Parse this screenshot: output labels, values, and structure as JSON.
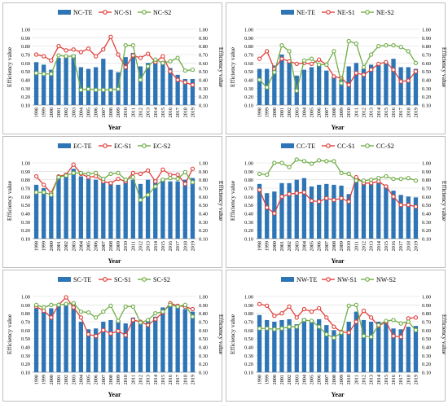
{
  "chart_data": [
    {
      "type": "bar",
      "legend": {
        "te": "NC-TE",
        "s1": "NC-S1",
        "s2": "NC-S2"
      },
      "xlabel": "Year",
      "ylabel_left": "Efficiency value",
      "ylabel_right": "Efficiency value",
      "ylim": [
        0.1,
        1.0
      ],
      "categories": [
        "1998",
        "1999",
        "2000",
        "2001",
        "2002",
        "2003",
        "2004",
        "2005",
        "2006",
        "2007",
        "2008",
        "2009",
        "2010",
        "2011",
        "2012",
        "2013",
        "2014",
        "2015",
        "2016",
        "2017",
        "2018",
        "2019"
      ],
      "series": [
        {
          "name": "NC-TE",
          "kind": "bar",
          "values": [
            0.61,
            0.58,
            0.52,
            0.66,
            0.68,
            0.7,
            0.55,
            0.53,
            0.55,
            0.65,
            0.52,
            0.49,
            0.67,
            0.72,
            0.56,
            0.6,
            0.64,
            0.62,
            0.54,
            0.46,
            0.41,
            0.41
          ]
        },
        {
          "name": "NC-S1",
          "kind": "line",
          "values": [
            0.7,
            0.68,
            0.63,
            0.8,
            0.75,
            0.76,
            0.73,
            0.77,
            0.68,
            0.76,
            0.91,
            0.7,
            0.55,
            0.69,
            0.66,
            0.71,
            0.61,
            0.68,
            0.5,
            0.4,
            0.37,
            0.34
          ]
        },
        {
          "name": "NC-S2",
          "kind": "line",
          "values": [
            0.48,
            0.47,
            0.47,
            0.69,
            0.68,
            0.68,
            0.28,
            0.29,
            0.28,
            0.28,
            0.28,
            0.29,
            0.81,
            0.81,
            0.4,
            0.56,
            0.64,
            0.6,
            0.62,
            0.66,
            0.51,
            0.52
          ]
        }
      ]
    },
    {
      "type": "bar",
      "legend": {
        "te": "NE-TE",
        "s1": "NE-S1",
        "s2": "NE-S2"
      },
      "xlabel": "Year",
      "ylabel_left": "Efficiency value",
      "ylabel_right": "Efficiency value",
      "ylim": [
        0.1,
        1.0
      ],
      "categories": [
        "1998",
        "1999",
        "2000",
        "2001",
        "2002",
        "2003",
        "2004",
        "2005",
        "2006",
        "2007",
        "2008",
        "2009",
        "2010",
        "2011",
        "2012",
        "2013",
        "2014",
        "2015",
        "2016",
        "2017",
        "2018",
        "2019"
      ],
      "series": [
        {
          "name": "NE-TE",
          "kind": "bar",
          "values": [
            0.53,
            0.53,
            0.57,
            0.7,
            0.62,
            0.45,
            0.52,
            0.55,
            0.58,
            0.51,
            0.43,
            0.4,
            0.56,
            0.6,
            0.53,
            0.58,
            0.57,
            0.62,
            0.65,
            0.55,
            0.55,
            0.53
          ]
        },
        {
          "name": "NE-S1",
          "kind": "line",
          "values": [
            0.65,
            0.74,
            0.53,
            0.65,
            0.62,
            0.59,
            0.6,
            0.59,
            0.64,
            0.58,
            0.44,
            0.42,
            0.34,
            0.48,
            0.46,
            0.52,
            0.59,
            0.61,
            0.52,
            0.38,
            0.39,
            0.5
          ]
        },
        {
          "name": "NE-S2",
          "kind": "line",
          "values": [
            0.4,
            0.31,
            0.49,
            0.81,
            0.74,
            0.27,
            0.63,
            0.65,
            0.58,
            0.58,
            0.74,
            0.36,
            0.86,
            0.83,
            0.55,
            0.7,
            0.8,
            0.81,
            0.81,
            0.79,
            0.74,
            0.6
          ]
        }
      ]
    },
    {
      "type": "bar",
      "legend": {
        "te": "EC-TE",
        "s1": "EC-S1",
        "s2": "EC-S2"
      },
      "xlabel": "Year",
      "ylabel_left": "Efficiency value",
      "ylabel_right": "Efficiency value",
      "ylim": [
        0.1,
        1.0
      ],
      "categories": [
        "1998",
        "1999",
        "2000",
        "2001",
        "2002",
        "2003",
        "2004",
        "2005",
        "2006",
        "2007",
        "2008",
        "2009",
        "2010",
        "2011",
        "2012",
        "2013",
        "2014",
        "2015",
        "2016",
        "2017",
        "2018",
        "2019"
      ],
      "series": [
        {
          "name": "EC-TE",
          "kind": "bar",
          "values": [
            0.74,
            0.7,
            0.63,
            0.83,
            0.88,
            0.93,
            0.84,
            0.81,
            0.8,
            0.77,
            0.78,
            0.74,
            0.8,
            0.8,
            0.75,
            0.8,
            0.8,
            0.81,
            0.78,
            0.78,
            0.8,
            0.82
          ]
        },
        {
          "name": "EC-S1",
          "kind": "line",
          "values": [
            0.84,
            0.74,
            0.64,
            0.84,
            0.86,
            0.98,
            0.87,
            0.83,
            0.84,
            0.78,
            0.76,
            0.81,
            0.78,
            0.88,
            0.87,
            0.91,
            0.78,
            0.92,
            0.86,
            0.86,
            0.75,
            0.93
          ]
        },
        {
          "name": "EC-S2",
          "kind": "line",
          "values": [
            0.65,
            0.65,
            0.62,
            0.83,
            0.85,
            0.88,
            0.88,
            0.87,
            0.88,
            0.81,
            0.87,
            0.88,
            0.8,
            0.83,
            0.56,
            0.62,
            0.72,
            0.8,
            0.82,
            0.81,
            0.89,
            0.77
          ]
        }
      ]
    },
    {
      "type": "bar",
      "legend": {
        "te": "CC-TE",
        "s1": "CC-S1",
        "s2": "CC-S2"
      },
      "xlabel": "Year",
      "ylabel_left": "Efficiency value",
      "ylabel_right": "Efficiency value",
      "ylim": [
        0.1,
        1.0
      ],
      "categories": [
        "1998",
        "1999",
        "2000",
        "2001",
        "2002",
        "2003",
        "2004",
        "2005",
        "2006",
        "2007",
        "2008",
        "2009",
        "2010",
        "2011",
        "2012",
        "2013",
        "2014",
        "2015",
        "2016",
        "2017",
        "2018",
        "2019"
      ],
      "series": [
        {
          "name": "CC-TE",
          "kind": "bar",
          "values": [
            0.75,
            0.64,
            0.66,
            0.76,
            0.76,
            0.8,
            0.82,
            0.72,
            0.74,
            0.75,
            0.74,
            0.73,
            0.63,
            0.81,
            0.76,
            0.75,
            0.76,
            0.74,
            0.67,
            0.62,
            0.6,
            0.59
          ]
        },
        {
          "name": "CC-S1",
          "kind": "line",
          "values": [
            0.68,
            0.47,
            0.4,
            0.6,
            0.63,
            0.64,
            0.65,
            0.55,
            0.54,
            0.58,
            0.56,
            0.58,
            0.54,
            0.83,
            0.76,
            0.76,
            0.78,
            0.72,
            0.6,
            0.5,
            0.5,
            0.48
          ]
        },
        {
          "name": "CC-S2",
          "kind": "line",
          "values": [
            0.87,
            0.86,
            1.0,
            1.0,
            0.95,
            1.04,
            1.02,
            0.99,
            1.03,
            1.02,
            1.02,
            0.88,
            0.87,
            0.79,
            0.79,
            0.8,
            0.82,
            0.84,
            0.81,
            0.81,
            0.82,
            0.79
          ]
        }
      ]
    },
    {
      "type": "bar",
      "legend": {
        "te": "SC-TE",
        "s1": "SC-S1",
        "s2": "SC-S2"
      },
      "xlabel": "Year",
      "ylabel_left": "Efficiency value",
      "ylabel_right": "Efficiency value",
      "ylim": [
        0.1,
        1.0
      ],
      "categories": [
        "1998",
        "1999",
        "2000",
        "2001",
        "2002",
        "2003",
        "2004",
        "2005",
        "2006",
        "2007",
        "2008",
        "2009",
        "2010",
        "2011",
        "2012",
        "2013",
        "2014",
        "2015",
        "2016",
        "2017",
        "2018",
        "2019"
      ],
      "series": [
        {
          "name": "SC-TE",
          "kind": "bar",
          "values": [
            0.86,
            0.82,
            0.86,
            0.9,
            0.92,
            0.93,
            0.7,
            0.61,
            0.62,
            0.7,
            0.72,
            0.72,
            0.68,
            0.75,
            0.69,
            0.71,
            0.76,
            0.87,
            0.89,
            0.88,
            0.85,
            0.82
          ]
        },
        {
          "name": "SC-S1",
          "kind": "line",
          "values": [
            0.88,
            0.83,
            0.75,
            0.9,
            0.99,
            0.87,
            0.75,
            0.55,
            0.53,
            0.6,
            0.56,
            0.59,
            0.54,
            0.72,
            0.7,
            0.66,
            0.73,
            0.81,
            0.92,
            0.89,
            0.88,
            0.85
          ]
        },
        {
          "name": "SC-S2",
          "kind": "line",
          "values": [
            0.9,
            0.87,
            0.9,
            0.9,
            0.91,
            0.92,
            0.82,
            0.81,
            0.75,
            0.82,
            0.89,
            0.71,
            0.88,
            0.88,
            0.69,
            0.72,
            0.8,
            0.82,
            0.9,
            0.88,
            0.9,
            0.76
          ]
        }
      ]
    },
    {
      "type": "bar",
      "legend": {
        "te": "NW-TE",
        "s1": "NW-S1",
        "s2": "NW-S2"
      },
      "xlabel": "Year",
      "ylabel_left": "Efficiency value",
      "ylabel_right": "Efficiency value",
      "ylim": [
        0.1,
        1.0
      ],
      "categories": [
        "1998",
        "1999",
        "2000",
        "2001",
        "2002",
        "2003",
        "2004",
        "2005",
        "2006",
        "2007",
        "2008",
        "2009",
        "2010",
        "2011",
        "2012",
        "2013",
        "2014",
        "2015",
        "2016",
        "2017",
        "2018",
        "2019"
      ],
      "series": [
        {
          "name": "NW-TE",
          "kind": "bar",
          "values": [
            0.78,
            0.72,
            0.7,
            0.72,
            0.73,
            0.67,
            0.74,
            0.72,
            0.73,
            0.66,
            0.6,
            0.57,
            0.7,
            0.82,
            0.72,
            0.7,
            0.7,
            0.71,
            0.62,
            0.61,
            0.64,
            0.65
          ]
        },
        {
          "name": "NW-S1",
          "kind": "line",
          "values": [
            0.91,
            0.89,
            0.77,
            0.8,
            0.88,
            0.75,
            0.85,
            0.82,
            0.86,
            0.75,
            0.64,
            0.58,
            0.57,
            0.7,
            0.83,
            0.75,
            0.65,
            0.7,
            0.53,
            0.52,
            0.74,
            0.75
          ]
        },
        {
          "name": "NW-S2",
          "kind": "line",
          "values": [
            0.62,
            0.62,
            0.61,
            0.62,
            0.64,
            0.64,
            0.72,
            0.71,
            0.64,
            0.55,
            0.51,
            0.57,
            0.89,
            0.9,
            0.53,
            0.52,
            0.66,
            0.71,
            0.72,
            0.68,
            0.7,
            0.6
          ]
        }
      ]
    }
  ],
  "ticks": [
    "0.10",
    "0.20",
    "0.30",
    "0.40",
    "0.50",
    "0.60",
    "0.70",
    "0.80",
    "0.90",
    "1.00"
  ],
  "colors": {
    "te": "#2e75b6",
    "s1": "#e0403a",
    "s2": "#70ad47",
    "frame": "#bfbfbf",
    "grid": "#d9d9d9"
  }
}
